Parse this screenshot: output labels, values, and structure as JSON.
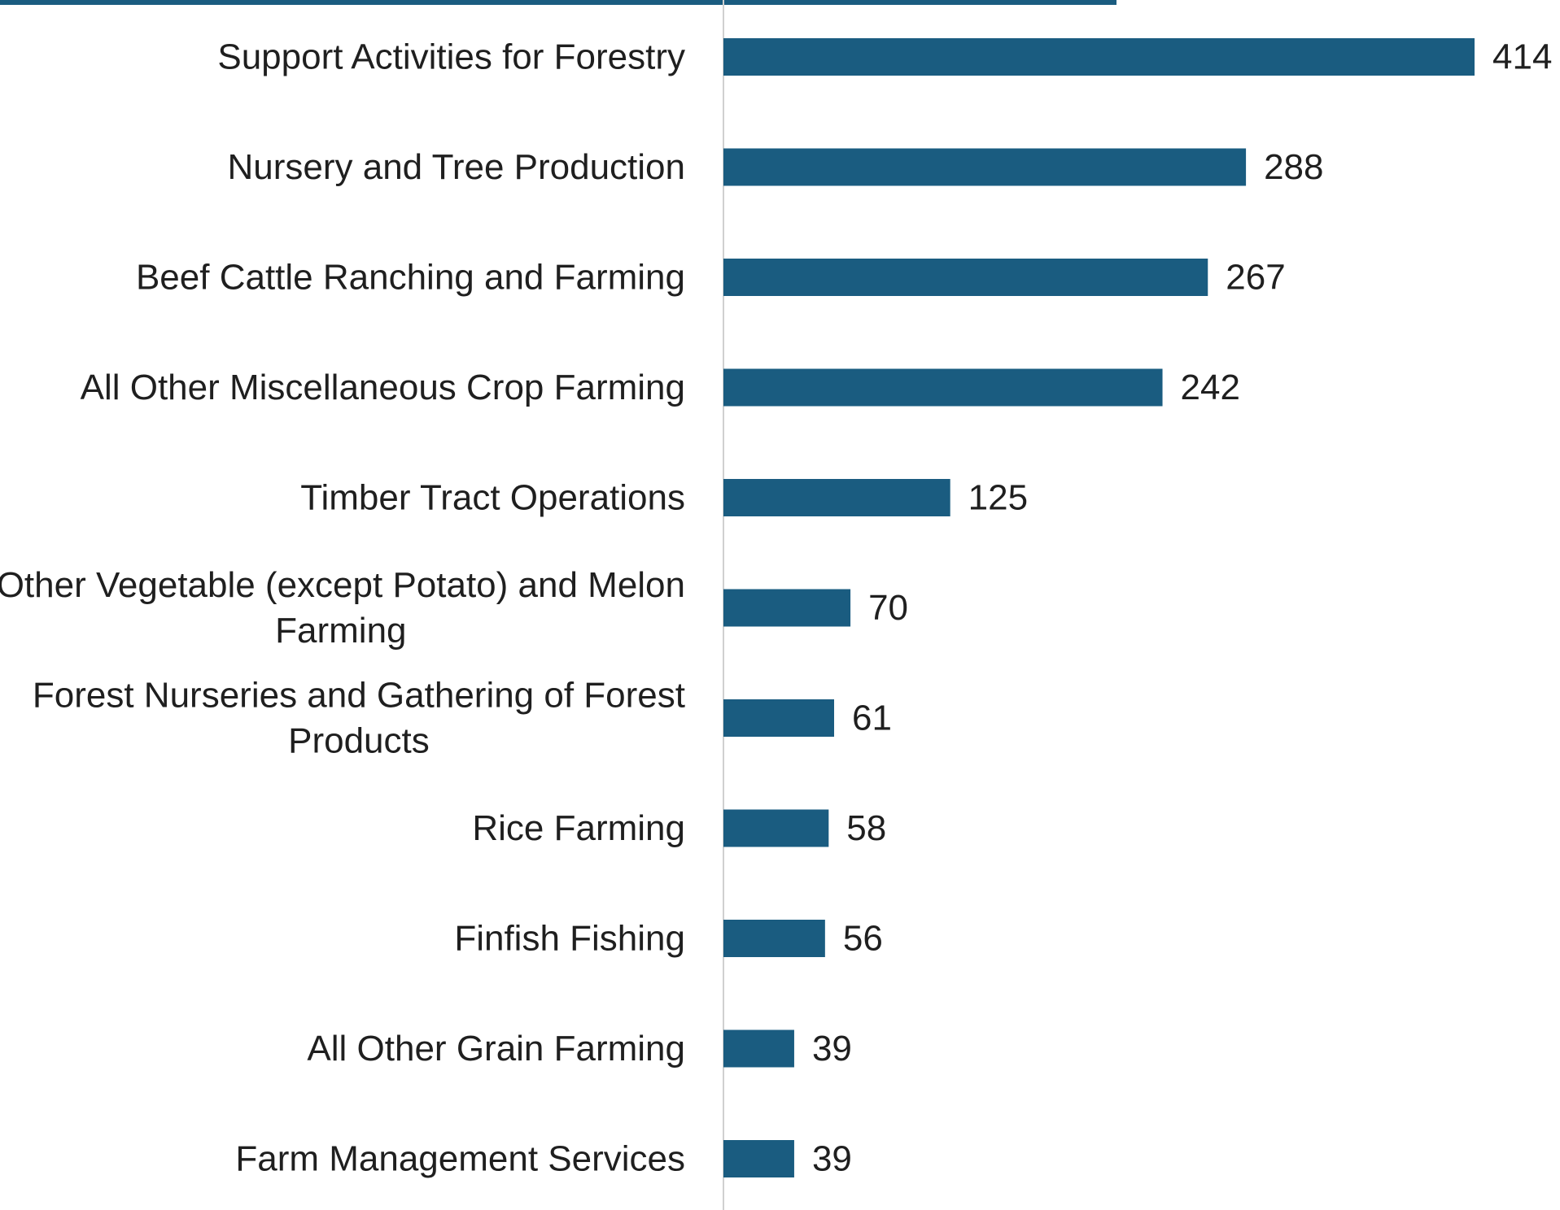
{
  "chart_data": {
    "type": "bar",
    "orientation": "horizontal",
    "title": "",
    "xlabel": "",
    "ylabel": "",
    "categories": [
      "Support Activities for Forestry",
      "Nursery and Tree Production",
      "Beef Cattle Ranching and Farming",
      "All Other Miscellaneous Crop Farming",
      "Timber Tract Operations",
      "Other Vegetable (except Potato) and Melon Farming",
      "Forest Nurseries and Gathering of Forest Products",
      "Rice Farming",
      "Finfish Fishing",
      "All Other Grain Farming",
      "Farm Management Services"
    ],
    "category_lines": [
      [
        "Support Activities for Forestry"
      ],
      [
        "Nursery and Tree Production"
      ],
      [
        "Beef Cattle Ranching and Farming"
      ],
      [
        "All Other Miscellaneous Crop Farming"
      ],
      [
        "Timber Tract Operations"
      ],
      [
        "Other Vegetable (except Potato) and Melon",
        "Farming"
      ],
      [
        "Forest Nurseries and Gathering of Forest",
        "Products"
      ],
      [
        "Rice Farming"
      ],
      [
        "Finfish Fishing"
      ],
      [
        "All Other Grain Farming"
      ],
      [
        "Farm Management Services"
      ]
    ],
    "values": [
      414,
      288,
      267,
      242,
      125,
      70,
      61,
      58,
      56,
      39,
      39
    ],
    "value_labels": [
      "414",
      "288",
      "267",
      "242",
      "125",
      "70",
      "61",
      "58",
      "56",
      "39",
      "39"
    ],
    "xlim": [
      0,
      414
    ],
    "grid": false,
    "legend": "none",
    "colors": {
      "bar": "#1a5c80",
      "axis": "#d0d0d0",
      "text": "#1f1f1f"
    }
  }
}
